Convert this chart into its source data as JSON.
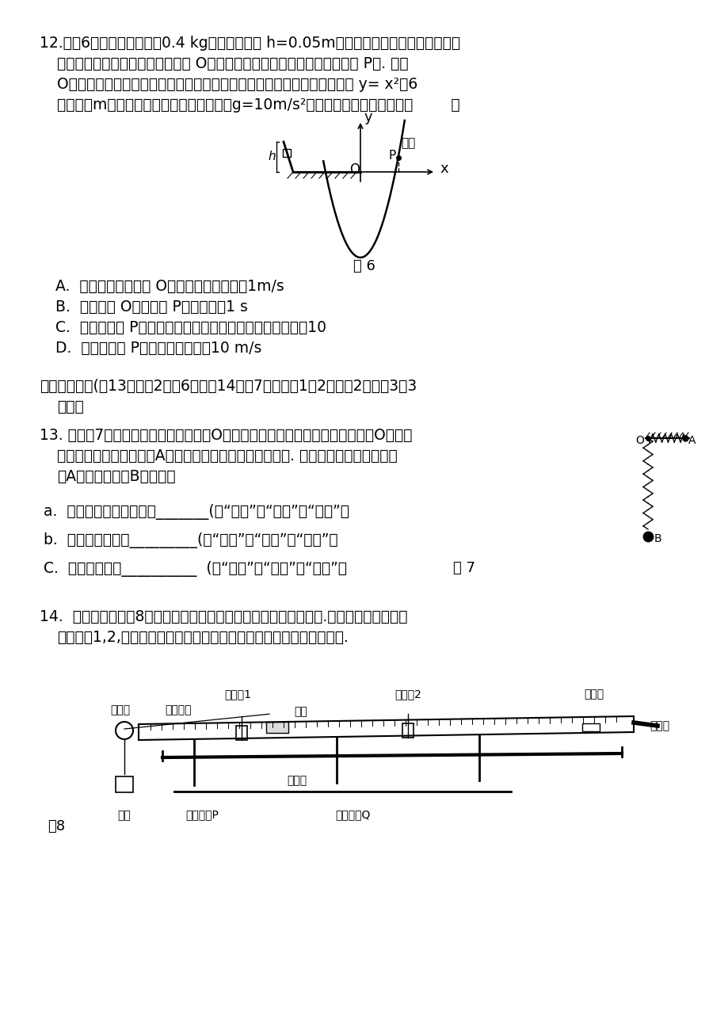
{
  "page_bg": "#ffffff",
  "text_color": "#000000",
  "fig_width": 9.2,
  "fig_height": 13.0,
  "dpi": 100,
  "q12_text_line1": "12.如图6所示，一个质量为0.4 kg的小物块从高 h=0.05m的坡面顶端由静止释放，滑到水",
  "q12_text_line2": "平台上，滑行一段距离后，从边缘 O点水平飞出，击中平台右下侧挡板上的 P点. 现以",
  "q12_text_line3": "O为原点在绝直面内建立如图所示的平面直角坐标系，挡板的形状满足方程 y= x²－6",
  "q12_text_line4": "（单位：m），不计一切摩擦和空气阻力，g=10m/s²，则下列说法正确的是：（        ）",
  "fig6_caption": "图 6",
  "q12_A": "A.  小物块从水平台上 O点飞出的速度大小为1m/s",
  "q12_B": "B.  小物块从 O点运动到 P点的时间为1 s",
  "q12_C": "C.  小物块刚到 P点时速度方向与水平方向夹角的正切值等于10",
  "q12_D": "D.  小物块刚到 P点时速度的大小为10 m/s",
  "section2_title": "二、非选择题(第13题每穲2分兲6分，第14题兲7分其中第1、2小问公2分，第3问3",
  "section2_title2": "分。）",
  "q13_text_line1": "13. 如右图7所示，一轻弹簧一端固定于O点，另一端系一重物，将重物从与悉点O在同一",
  "q13_text_line2": "水平面且弹簧保持原长的A点无初速度释放，让它自由摆下. 不计空气阻力，则在重物",
  "q13_text_line3": "由A点摆向最低点B的过程中",
  "q13_a": "a.  弹簧与重物的总机械能_______(填“增大”、“不变”或“减小”）",
  "q13_b": "b.  弹簧的弹性势能_________(填“增大”、“不变”或“减小”）",
  "q13_c": "C.  重物的机械能__________  (填“增大”、“不变”或“减小”）",
  "fig7_caption": "图 7",
  "q14_text_line1": "14.  某同学利用如图8所示的气啹导轨装置验证系统机械能守恒定律.在气啹导轨上安装了",
  "q14_text_line2": "两光电门1,2,滑块上固定一遣光条，滑块用细线绕过定滑轮与钉码相连.",
  "fig8_caption": "图8"
}
